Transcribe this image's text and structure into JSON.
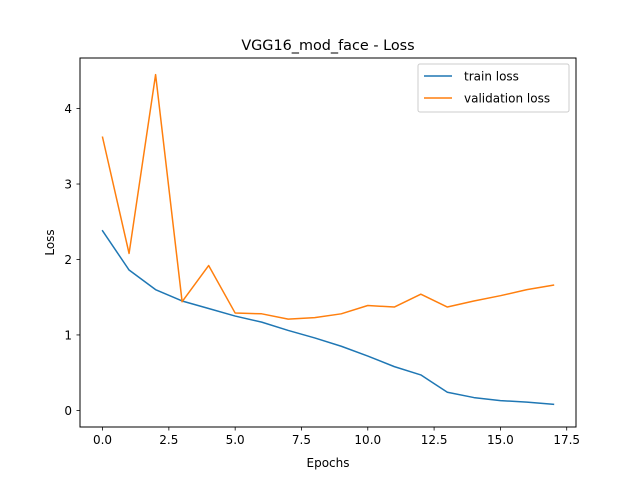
{
  "chart_data": {
    "type": "line",
    "title": "VGG16_mod_face - Loss",
    "xlabel": "Epochs",
    "ylabel": "Loss",
    "xlim": [
      -0.85,
      17.85
    ],
    "ylim": [
      -0.22,
      4.67
    ],
    "xticks": [
      0.0,
      2.5,
      5.0,
      7.5,
      10.0,
      12.5,
      15.0,
      17.5
    ],
    "xtick_labels": [
      "0.0",
      "2.5",
      "5.0",
      "7.5",
      "10.0",
      "12.5",
      "15.0",
      "17.5"
    ],
    "yticks": [
      0,
      1,
      2,
      3,
      4
    ],
    "ytick_labels": [
      "0",
      "1",
      "2",
      "3",
      "4"
    ],
    "grid": false,
    "legend_position": "upper right",
    "x": [
      0,
      1,
      2,
      3,
      4,
      5,
      6,
      7,
      8,
      9,
      10,
      11,
      12,
      13,
      14,
      15,
      16,
      17
    ],
    "series": [
      {
        "name": "train loss",
        "color": "#1f77b4",
        "values": [
          2.38,
          1.86,
          1.6,
          1.45,
          1.35,
          1.25,
          1.17,
          1.06,
          0.96,
          0.85,
          0.72,
          0.58,
          0.47,
          0.24,
          0.17,
          0.13,
          0.11,
          0.08
        ]
      },
      {
        "name": "validation loss",
        "color": "#ff7f0e",
        "values": [
          3.62,
          2.08,
          4.45,
          1.44,
          1.92,
          1.29,
          1.28,
          1.21,
          1.23,
          1.28,
          1.39,
          1.37,
          1.54,
          1.37,
          1.45,
          1.52,
          1.6,
          1.66
        ]
      }
    ]
  }
}
